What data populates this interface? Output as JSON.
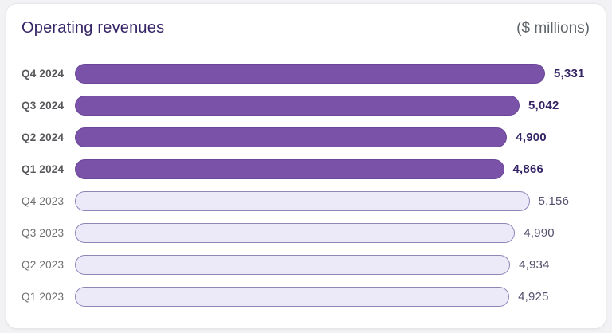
{
  "card": {
    "title": "Operating revenues",
    "unit_label": "($ millions)"
  },
  "chart_data": {
    "type": "bar",
    "orientation": "horizontal",
    "title": "Operating revenues",
    "unit": "$ millions",
    "categories": [
      "Q4 2024",
      "Q3 2024",
      "Q2 2024",
      "Q1 2024",
      "Q4 2023",
      "Q3 2023",
      "Q2 2023",
      "Q1 2023"
    ],
    "values": [
      5331,
      5042,
      4900,
      4866,
      5156,
      4990,
      4934,
      4925
    ],
    "value_labels": [
      "5,331",
      "5,042",
      "4,900",
      "4,866",
      "5,156",
      "4,990",
      "4,934",
      "4,925"
    ],
    "groups": [
      "2024",
      "2024",
      "2024",
      "2024",
      "2023",
      "2023",
      "2023",
      "2023"
    ],
    "x_max": 5331,
    "grid": false,
    "legend": "none",
    "colors": {
      "bar_2024_fill": "#7a52a8",
      "bar_2024_border": "#6a4798",
      "bar_2023_fill": "#eceaf9",
      "bar_2023_border": "#8d87b9",
      "title_text": "#362566",
      "unit_text": "#5f6468",
      "label_2024": "#57585b",
      "label_2023": "#6e6f72",
      "value_2024": "#362566",
      "value_2023": "#54516e"
    }
  }
}
